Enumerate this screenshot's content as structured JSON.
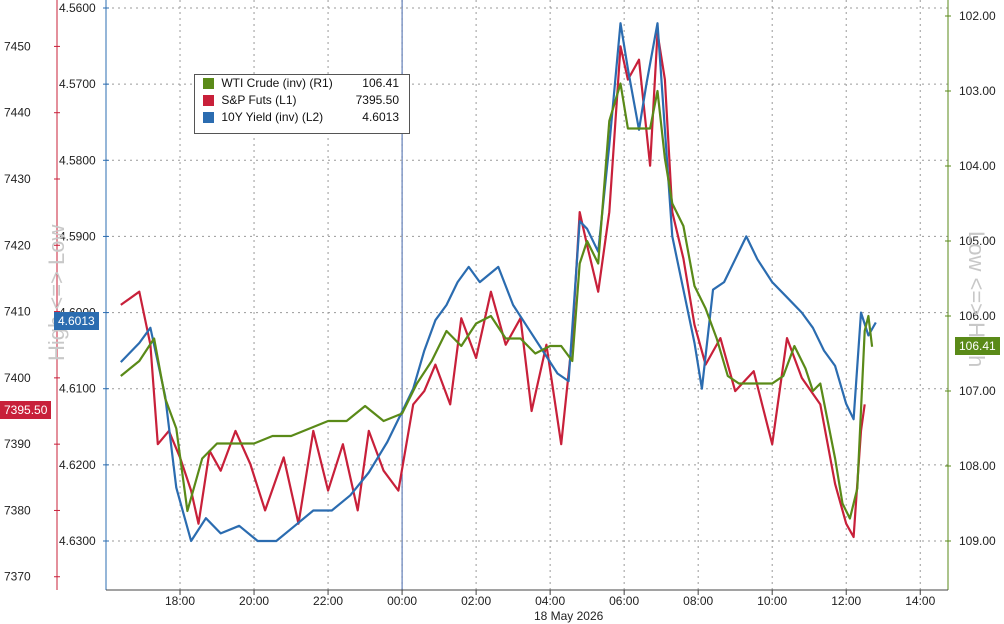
{
  "chart_data": {
    "type": "line",
    "xlabel": "18 May 2026",
    "x_ticks": [
      "18:00",
      "20:00",
      "22:00",
      "00:00",
      "02:00",
      "04:00",
      "06:00",
      "08:00",
      "10:00",
      "12:00",
      "14:00"
    ],
    "left_axis_sp": {
      "ticks": [
        "7450",
        "7440",
        "7430",
        "7420",
        "7410",
        "7400",
        "7390",
        "7380",
        "7370"
      ],
      "ylim": [
        7368,
        7457
      ]
    },
    "left_axis_yield": {
      "ticks": [
        "4.5600",
        "4.5700",
        "4.5800",
        "4.5900",
        "4.6000",
        "4.6100",
        "4.6200",
        "4.6300"
      ],
      "ylim": [
        4.56,
        4.63
      ],
      "inverted": true
    },
    "right_axis_wti": {
      "ticks": [
        "102.00",
        "103.00",
        "104.00",
        "105.00",
        "106.00",
        "107.00",
        "108.00",
        "109.00"
      ],
      "ylim": [
        102.0,
        109.0
      ],
      "inverted": true
    },
    "watermark_left": "High <=> Low",
    "watermark_right": "Low <=> High",
    "legend": [
      {
        "name": "WTI Crude (inv) (R1)",
        "last": "106.41",
        "color": "#5a8a18"
      },
      {
        "name": "S&P Futs (L1)",
        "last": "7395.50",
        "color": "#c8203a"
      },
      {
        "name": "10Y Yield (inv) (L2)",
        "last": "4.6013",
        "color": "#2b6cb0"
      }
    ],
    "tags": {
      "sp": "7395.50",
      "yield": "4.6013",
      "wti": "106.41"
    },
    "series": [
      {
        "name": "S&P Futs (L1)",
        "axis": "sp",
        "color": "#c8203a",
        "points": [
          [
            16.4,
            7411
          ],
          [
            16.9,
            7413
          ],
          [
            17.2,
            7405
          ],
          [
            17.4,
            7390
          ],
          [
            17.7,
            7392
          ],
          [
            18.0,
            7388
          ],
          [
            18.3,
            7383
          ],
          [
            18.5,
            7378
          ],
          [
            18.8,
            7389
          ],
          [
            19.1,
            7386
          ],
          [
            19.5,
            7392
          ],
          [
            19.9,
            7387
          ],
          [
            20.3,
            7380
          ],
          [
            20.8,
            7388
          ],
          [
            21.2,
            7378
          ],
          [
            21.6,
            7392
          ],
          [
            22.0,
            7383
          ],
          [
            22.4,
            7390
          ],
          [
            22.8,
            7380
          ],
          [
            23.1,
            7392
          ],
          [
            23.5,
            7386
          ],
          [
            23.9,
            7383
          ],
          [
            24.3,
            7396
          ],
          [
            24.6,
            7398
          ],
          [
            24.9,
            7402
          ],
          [
            25.3,
            7396
          ],
          [
            25.6,
            7409
          ],
          [
            26.0,
            7403
          ],
          [
            26.4,
            7413
          ],
          [
            26.8,
            7405
          ],
          [
            27.2,
            7409
          ],
          [
            27.5,
            7395
          ],
          [
            27.9,
            7405
          ],
          [
            28.3,
            7390
          ],
          [
            28.6,
            7406
          ],
          [
            28.8,
            7425
          ],
          [
            29.0,
            7420
          ],
          [
            29.3,
            7413
          ],
          [
            29.6,
            7425
          ],
          [
            29.9,
            7450
          ],
          [
            30.1,
            7445
          ],
          [
            30.4,
            7448
          ],
          [
            30.7,
            7432
          ],
          [
            30.9,
            7452
          ],
          [
            31.1,
            7445
          ],
          [
            31.3,
            7425
          ],
          [
            31.6,
            7418
          ],
          [
            31.9,
            7408
          ],
          [
            32.2,
            7402
          ],
          [
            32.6,
            7406
          ],
          [
            33.0,
            7398
          ],
          [
            33.5,
            7401
          ],
          [
            34.0,
            7390
          ],
          [
            34.4,
            7406
          ],
          [
            34.8,
            7400
          ],
          [
            35.3,
            7396
          ],
          [
            35.7,
            7384
          ],
          [
            36.0,
            7378
          ],
          [
            36.2,
            7376
          ],
          [
            36.4,
            7392
          ],
          [
            36.5,
            7396
          ]
        ]
      },
      {
        "name": "10Y Yield (inv) (L2)",
        "axis": "yield",
        "color": "#2b6cb0",
        "points": [
          [
            16.4,
            4.6065
          ],
          [
            16.9,
            4.604
          ],
          [
            17.2,
            4.602
          ],
          [
            17.6,
            4.611
          ],
          [
            17.9,
            4.623
          ],
          [
            18.3,
            4.63
          ],
          [
            18.7,
            4.627
          ],
          [
            19.1,
            4.629
          ],
          [
            19.6,
            4.628
          ],
          [
            20.1,
            4.63
          ],
          [
            20.6,
            4.63
          ],
          [
            21.1,
            4.628
          ],
          [
            21.6,
            4.626
          ],
          [
            22.1,
            4.626
          ],
          [
            22.6,
            4.624
          ],
          [
            23.1,
            4.621
          ],
          [
            23.6,
            4.617
          ],
          [
            24.0,
            4.613
          ],
          [
            24.3,
            4.61
          ],
          [
            24.6,
            4.605
          ],
          [
            24.9,
            4.601
          ],
          [
            25.2,
            4.599
          ],
          [
            25.5,
            4.596
          ],
          [
            25.8,
            4.594
          ],
          [
            26.1,
            4.596
          ],
          [
            26.6,
            4.594
          ],
          [
            27.0,
            4.599
          ],
          [
            27.4,
            4.602
          ],
          [
            27.8,
            4.605
          ],
          [
            28.2,
            4.608
          ],
          [
            28.5,
            4.609
          ],
          [
            28.8,
            4.588
          ],
          [
            29.0,
            4.589
          ],
          [
            29.3,
            4.592
          ],
          [
            29.6,
            4.578
          ],
          [
            29.9,
            4.562
          ],
          [
            30.1,
            4.568
          ],
          [
            30.4,
            4.576
          ],
          [
            30.6,
            4.57
          ],
          [
            30.9,
            4.562
          ],
          [
            31.1,
            4.576
          ],
          [
            31.3,
            4.59
          ],
          [
            31.6,
            4.597
          ],
          [
            31.9,
            4.604
          ],
          [
            32.1,
            4.61
          ],
          [
            32.4,
            4.597
          ],
          [
            32.7,
            4.596
          ],
          [
            33.0,
            4.593
          ],
          [
            33.3,
            4.59
          ],
          [
            33.6,
            4.593
          ],
          [
            34.0,
            4.596
          ],
          [
            34.4,
            4.598
          ],
          [
            34.8,
            4.6
          ],
          [
            35.1,
            4.602
          ],
          [
            35.4,
            4.605
          ],
          [
            35.7,
            4.607
          ],
          [
            36.0,
            4.612
          ],
          [
            36.2,
            4.614
          ],
          [
            36.4,
            4.6
          ],
          [
            36.6,
            4.603
          ],
          [
            36.8,
            4.6013
          ]
        ]
      },
      {
        "name": "WTI Crude (inv) (R1)",
        "axis": "wti",
        "color": "#5a8a18",
        "points": [
          [
            16.4,
            106.8
          ],
          [
            16.9,
            106.6
          ],
          [
            17.3,
            106.3
          ],
          [
            17.6,
            107.1
          ],
          [
            17.9,
            107.5
          ],
          [
            18.2,
            108.6
          ],
          [
            18.6,
            107.9
          ],
          [
            19.0,
            107.7
          ],
          [
            19.5,
            107.7
          ],
          [
            20.0,
            107.7
          ],
          [
            20.5,
            107.6
          ],
          [
            21.0,
            107.6
          ],
          [
            21.5,
            107.5
          ],
          [
            22.0,
            107.4
          ],
          [
            22.5,
            107.4
          ],
          [
            23.0,
            107.2
          ],
          [
            23.5,
            107.4
          ],
          [
            24.0,
            107.3
          ],
          [
            24.4,
            106.9
          ],
          [
            24.8,
            106.6
          ],
          [
            25.2,
            106.2
          ],
          [
            25.6,
            106.4
          ],
          [
            26.0,
            106.1
          ],
          [
            26.4,
            106.0
          ],
          [
            26.8,
            106.3
          ],
          [
            27.2,
            106.3
          ],
          [
            27.6,
            106.5
          ],
          [
            28.0,
            106.4
          ],
          [
            28.3,
            106.4
          ],
          [
            28.6,
            106.6
          ],
          [
            28.8,
            105.3
          ],
          [
            29.0,
            105.0
          ],
          [
            29.3,
            105.3
          ],
          [
            29.6,
            103.4
          ],
          [
            29.9,
            102.9
          ],
          [
            30.1,
            103.5
          ],
          [
            30.4,
            103.5
          ],
          [
            30.7,
            103.5
          ],
          [
            30.9,
            103.0
          ],
          [
            31.1,
            103.9
          ],
          [
            31.3,
            104.5
          ],
          [
            31.6,
            104.8
          ],
          [
            31.9,
            105.6
          ],
          [
            32.2,
            105.9
          ],
          [
            32.5,
            106.3
          ],
          [
            32.8,
            106.8
          ],
          [
            33.1,
            106.9
          ],
          [
            33.4,
            106.9
          ],
          [
            33.7,
            106.9
          ],
          [
            34.0,
            106.9
          ],
          [
            34.3,
            106.8
          ],
          [
            34.6,
            106.4
          ],
          [
            34.9,
            106.7
          ],
          [
            35.1,
            107.0
          ],
          [
            35.3,
            106.9
          ],
          [
            35.5,
            107.4
          ],
          [
            35.7,
            107.9
          ],
          [
            35.9,
            108.5
          ],
          [
            36.1,
            108.7
          ],
          [
            36.3,
            108.3
          ],
          [
            36.5,
            106.2
          ],
          [
            36.6,
            106.0
          ],
          [
            36.7,
            106.41
          ]
        ]
      }
    ]
  }
}
